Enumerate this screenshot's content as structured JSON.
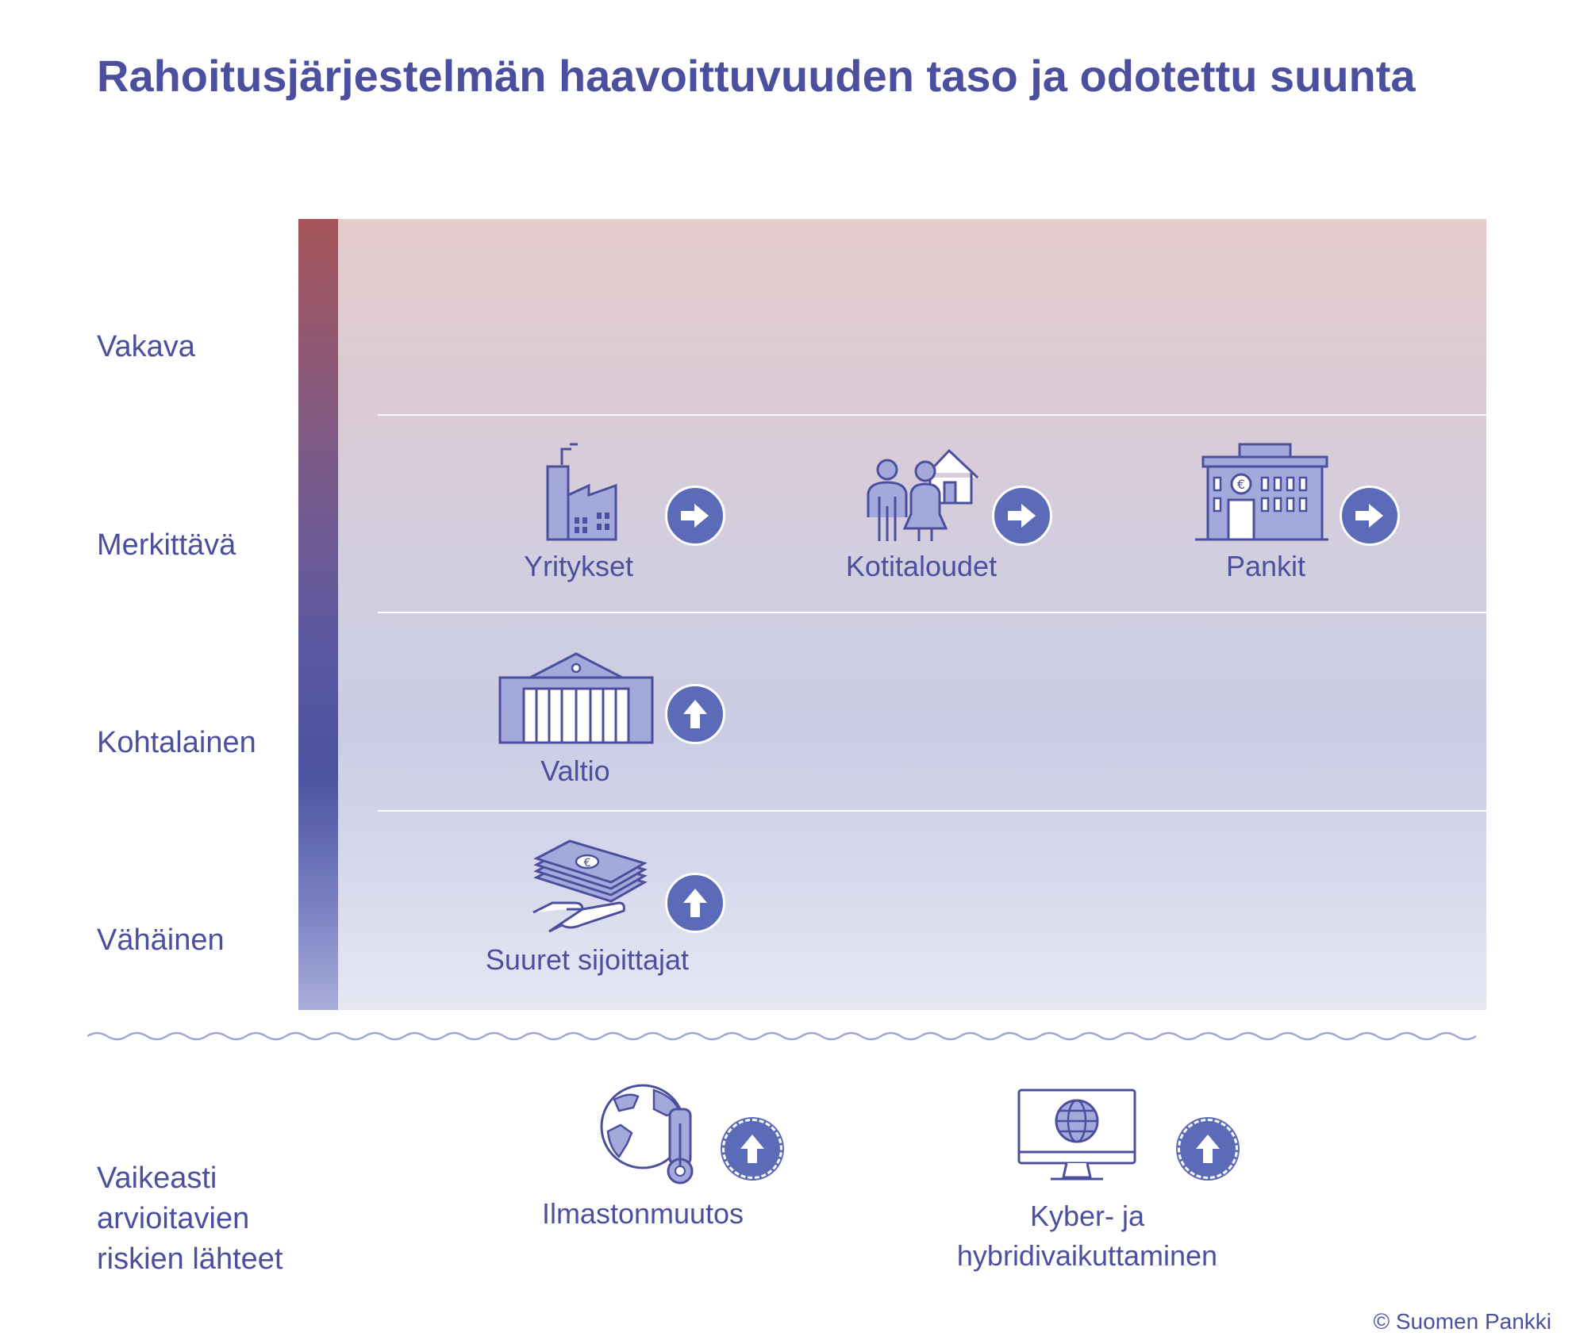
{
  "title": "Rahoitusjärjestelmän haavoittuvuuden taso ja odotettu suunta",
  "levels": {
    "severe": "Vakava",
    "significant": "Merkittävä",
    "moderate": "Kohtalainen",
    "minor": "Vähäinen"
  },
  "sectors": {
    "companies": {
      "label": "Yritykset",
      "level": "Merkittävä",
      "direction": "right",
      "icon": "factory-icon"
    },
    "households": {
      "label": "Kotitaloudet",
      "level": "Merkittävä",
      "direction": "right",
      "icon": "family-house-icon"
    },
    "banks": {
      "label": "Pankit",
      "level": "Merkittävä",
      "direction": "right",
      "icon": "bank-icon"
    },
    "state": {
      "label": "Valtio",
      "level": "Kohtalainen",
      "direction": "up",
      "icon": "government-building-icon"
    },
    "investors": {
      "label": "Suuret sijoittajat",
      "level": "Vähäinen",
      "direction": "up",
      "icon": "money-hand-icon"
    }
  },
  "sources": {
    "label_lines": [
      "Vaikeasti",
      "arvioitavien",
      "riskien lähteet"
    ],
    "climate": {
      "label": "Ilmastonmuutos",
      "direction": "up",
      "icon": "globe-thermometer-icon"
    },
    "cyber": {
      "label_lines": [
        "Kyber- ja",
        "hybridivaikuttaminen"
      ],
      "direction": "up",
      "icon": "monitor-globe-icon"
    }
  },
  "copyright": "© Suomen Pankki",
  "colors": {
    "text": "#4b4f9e",
    "arrow_circle": "#5b6bb8",
    "icon_fill": "#a3a9db",
    "icon_stroke": "#4b4f9e"
  }
}
